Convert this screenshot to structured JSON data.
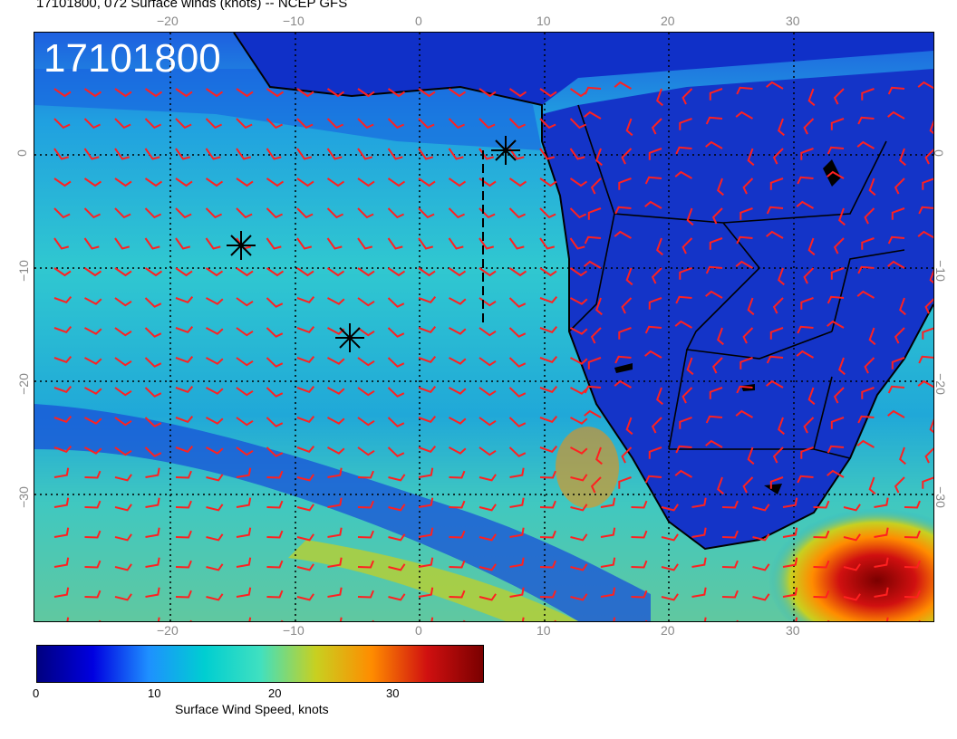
{
  "title": "17101800, 072 Surface winds (knots) -- NCEP GFS",
  "stamp": "17101800",
  "top_ticks": [
    "−20",
    "−10",
    "0",
    "10",
    "20",
    "30"
  ],
  "bottom_ticks": [
    "−20",
    "−10",
    "0",
    "10",
    "20",
    "30"
  ],
  "left_ticks": [
    "0",
    "−10",
    "−20",
    "−30"
  ],
  "right_ticks": [
    "0",
    "−10",
    "−20",
    "−30"
  ],
  "colorbar": {
    "title": "Surface Wind Speed, knots",
    "tick_labels": [
      "0",
      "10",
      "20",
      "30"
    ],
    "stops": [
      "#000080",
      "#0000e0",
      "#1e90ff",
      "#00ced1",
      "#40e0c0",
      "#c8d020",
      "#ff8c00",
      "#d01010",
      "#7a0000"
    ]
  },
  "markers": [
    "asterisk",
    "asterisk",
    "asterisk"
  ],
  "colors": {
    "barb": "#ff2020",
    "land_base": "#1030c8",
    "ocean": "#20b0d8",
    "coast": "#000000"
  }
}
